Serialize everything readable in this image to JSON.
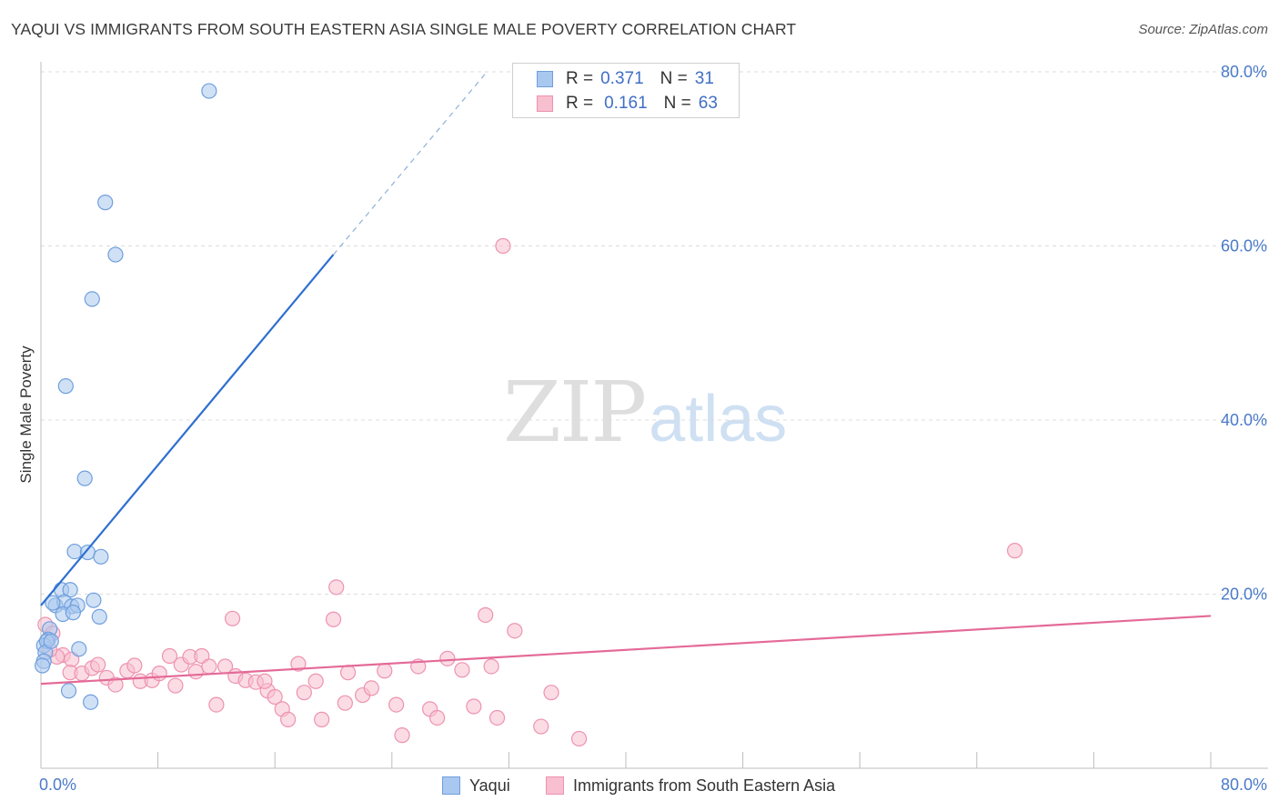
{
  "title": "YAQUI VS IMMIGRANTS FROM SOUTH EASTERN ASIA SINGLE MALE POVERTY CORRELATION CHART",
  "source": "Source: ZipAtlas.com",
  "watermark": {
    "zip": "ZIP",
    "atlas": "atlas"
  },
  "legend": {
    "yaqui": {
      "r_label": "R =",
      "r_value": "0.371",
      "n_label": "N =",
      "n_value": "31"
    },
    "sea": {
      "r_label": "R =",
      "r_value": "0.161",
      "n_label": "N =",
      "n_value": "63"
    }
  },
  "colors": {
    "yaqui_fill": "#a9c8ef",
    "yaqui_stroke": "#6f9fde",
    "yaqui_line": "#2e6fd0",
    "sea_fill": "#f7bfd0",
    "sea_stroke": "#ee92b0",
    "sea_line": "#e46a97",
    "tick_label": "#4a7ac9",
    "grid": "#dcdcdc"
  },
  "chart_data": {
    "type": "scatter",
    "title": "YAQUI VS IMMIGRANTS FROM SOUTH EASTERN ASIA SINGLE MALE POVERTY CORRELATION CHART",
    "xlabel": "",
    "ylabel": "Single Male Poverty",
    "xlim": [
      0,
      80
    ],
    "ylim": [
      0,
      80
    ],
    "x_tick_labels": [
      "0.0%",
      "80.0%"
    ],
    "y_ticks": [
      20,
      40,
      60,
      80
    ],
    "y_tick_labels": [
      "20.0%",
      "40.0%",
      "60.0%",
      "80.0%"
    ],
    "grid": true,
    "series": [
      {
        "name": "Yaqui",
        "R": 0.371,
        "N": 31,
        "points": [
          [
            11.5,
            77.8
          ],
          [
            4.4,
            65.0
          ],
          [
            5.1,
            59.0
          ],
          [
            3.5,
            53.9
          ],
          [
            1.7,
            43.9
          ],
          [
            3.0,
            33.3
          ],
          [
            2.3,
            24.9
          ],
          [
            3.2,
            24.8
          ],
          [
            4.1,
            24.3
          ],
          [
            1.4,
            20.5
          ],
          [
            2.0,
            20.5
          ],
          [
            1.0,
            18.7
          ],
          [
            1.6,
            19.1
          ],
          [
            2.1,
            18.6
          ],
          [
            2.5,
            18.7
          ],
          [
            3.6,
            19.3
          ],
          [
            1.5,
            17.7
          ],
          [
            2.2,
            17.9
          ],
          [
            4.0,
            17.4
          ],
          [
            0.6,
            16.0
          ],
          [
            0.5,
            14.8
          ],
          [
            0.2,
            14.1
          ],
          [
            0.4,
            14.6
          ],
          [
            0.3,
            13.3
          ],
          [
            2.6,
            13.7
          ],
          [
            0.2,
            12.3
          ],
          [
            0.1,
            11.8
          ],
          [
            1.9,
            8.9
          ],
          [
            3.4,
            7.6
          ],
          [
            0.8,
            19.0
          ],
          [
            0.7,
            14.6
          ]
        ],
        "trend": {
          "x": [
            0,
            20
          ],
          "y": [
            18.7,
            59.0
          ],
          "dashed_to": [
            30.5,
            80.0
          ]
        }
      },
      {
        "name": "Immigrants from South Eastern Asia",
        "R": 0.161,
        "N": 63,
        "points": [
          [
            31.6,
            60.0
          ],
          [
            66.6,
            25.0
          ],
          [
            20.2,
            20.8
          ],
          [
            30.4,
            17.6
          ],
          [
            13.1,
            17.2
          ],
          [
            20.0,
            17.1
          ],
          [
            32.4,
            15.8
          ],
          [
            0.3,
            16.5
          ],
          [
            0.8,
            15.5
          ],
          [
            1.5,
            13.0
          ],
          [
            2.1,
            12.5
          ],
          [
            2.0,
            11.0
          ],
          [
            2.8,
            10.9
          ],
          [
            3.5,
            11.5
          ],
          [
            3.9,
            11.9
          ],
          [
            4.5,
            10.4
          ],
          [
            5.1,
            9.6
          ],
          [
            5.9,
            11.2
          ],
          [
            6.4,
            11.8
          ],
          [
            6.8,
            10.0
          ],
          [
            7.6,
            10.1
          ],
          [
            8.1,
            10.9
          ],
          [
            8.8,
            12.9
          ],
          [
            9.2,
            9.5
          ],
          [
            9.6,
            11.9
          ],
          [
            10.2,
            12.8
          ],
          [
            10.6,
            11.1
          ],
          [
            11.0,
            12.9
          ],
          [
            11.5,
            11.7
          ],
          [
            12.0,
            7.3
          ],
          [
            12.6,
            11.7
          ],
          [
            13.3,
            10.6
          ],
          [
            14.0,
            10.1
          ],
          [
            14.7,
            9.9
          ],
          [
            15.5,
            8.9
          ],
          [
            16.0,
            8.2
          ],
          [
            16.5,
            6.8
          ],
          [
            16.9,
            5.6
          ],
          [
            17.6,
            12.0
          ],
          [
            18.0,
            8.7
          ],
          [
            18.8,
            10.0
          ],
          [
            19.2,
            5.6
          ],
          [
            20.8,
            7.5
          ],
          [
            21.0,
            11.0
          ],
          [
            22.0,
            8.4
          ],
          [
            22.6,
            9.2
          ],
          [
            23.5,
            11.2
          ],
          [
            24.3,
            7.3
          ],
          [
            24.7,
            3.8
          ],
          [
            25.8,
            11.7
          ],
          [
            26.6,
            6.8
          ],
          [
            27.1,
            5.8
          ],
          [
            27.8,
            12.6
          ],
          [
            28.8,
            11.3
          ],
          [
            29.6,
            7.1
          ],
          [
            30.8,
            11.7
          ],
          [
            31.2,
            5.8
          ],
          [
            34.2,
            4.8
          ],
          [
            34.9,
            8.7
          ],
          [
            36.8,
            3.4
          ],
          [
            1.1,
            12.8
          ],
          [
            0.6,
            13.6
          ],
          [
            15.3,
            10.0
          ]
        ],
        "trend": {
          "x": [
            0,
            80
          ],
          "y": [
            9.7,
            17.5
          ]
        }
      }
    ]
  },
  "bottom_legend": {
    "yaqui": "Yaqui",
    "sea": "Immigrants from South Eastern Asia"
  }
}
